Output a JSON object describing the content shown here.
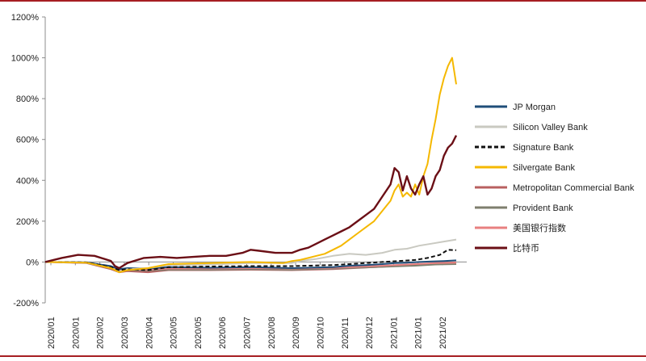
{
  "chart_data": {
    "type": "line",
    "title": "",
    "xlabel": "",
    "ylabel": "",
    "ylim": [
      -200,
      1200
    ],
    "yticks": [
      -200,
      0,
      200,
      400,
      600,
      800,
      1000,
      1200
    ],
    "ytick_labels": [
      "-200%",
      "0%",
      "200%",
      "400%",
      "600%",
      "800%",
      "1000%",
      "1200%"
    ],
    "x_tick_labels": [
      "2020/01",
      "2020/01",
      "2020/02",
      "2020/03",
      "2020/04",
      "2020/05",
      "2020/05",
      "2020/06",
      "2020/07",
      "2020/08",
      "2020/09",
      "2020/10",
      "2020/11",
      "2020/12",
      "2021/01",
      "2021/01",
      "2021/02"
    ],
    "x_index_range": [
      0,
      100
    ],
    "grid": false,
    "legend_position": "right",
    "colors": {
      "frame": "#a61e22"
    },
    "series": [
      {
        "name": "JP Morgan",
        "color": "#1f4e79",
        "dash": "solid",
        "x": [
          0,
          10,
          16,
          18,
          20,
          25,
          30,
          40,
          50,
          60,
          70,
          74,
          78,
          82,
          85,
          88,
          91,
          94,
          97,
          100
        ],
        "y": [
          0,
          -2,
          -20,
          -35,
          -30,
          -32,
          -25,
          -28,
          -25,
          -30,
          -25,
          -18,
          -15,
          -10,
          -5,
          -3,
          0,
          3,
          5,
          8
        ]
      },
      {
        "name": "Silicon Valley Bank",
        "color": "#c9c9c1",
        "dash": "solid",
        "x": [
          0,
          10,
          16,
          18,
          20,
          25,
          30,
          40,
          50,
          60,
          62,
          66,
          70,
          74,
          78,
          82,
          85,
          88,
          91,
          94,
          97,
          100
        ],
        "y": [
          0,
          -3,
          -30,
          -45,
          -35,
          -30,
          -15,
          -12,
          -5,
          -5,
          5,
          15,
          30,
          40,
          35,
          45,
          60,
          65,
          80,
          90,
          100,
          110
        ]
      },
      {
        "name": "Signature Bank",
        "color": "#111111",
        "dash": "dashed",
        "x": [
          0,
          10,
          16,
          18,
          20,
          25,
          30,
          40,
          50,
          60,
          70,
          74,
          78,
          82,
          86,
          90,
          93,
          96,
          98,
          100
        ],
        "y": [
          0,
          -2,
          -25,
          -40,
          -35,
          -40,
          -25,
          -22,
          -20,
          -20,
          -15,
          -10,
          -5,
          0,
          5,
          10,
          20,
          35,
          60,
          58
        ]
      },
      {
        "name": "Silvergate Bank",
        "color": "#f5b800",
        "dash": "solid",
        "x": [
          0,
          10,
          16,
          18,
          20,
          25,
          30,
          40,
          50,
          58,
          60,
          62,
          64,
          66,
          68,
          70,
          72,
          74,
          76,
          78,
          80,
          82,
          84,
          85,
          86,
          87,
          88,
          89,
          90,
          91,
          92,
          93,
          94,
          95,
          96,
          97,
          98,
          99,
          100
        ],
        "y": [
          0,
          -3,
          -30,
          -50,
          -40,
          -30,
          -10,
          -5,
          0,
          -5,
          5,
          10,
          20,
          30,
          40,
          60,
          80,
          110,
          140,
          170,
          200,
          250,
          300,
          350,
          380,
          320,
          340,
          320,
          380,
          330,
          420,
          480,
          600,
          700,
          820,
          900,
          960,
          1000,
          870
        ]
      },
      {
        "name": "Metropolitan Commercial Bank",
        "color": "#b86060",
        "dash": "solid",
        "x": [
          0,
          10,
          16,
          18,
          20,
          25,
          30,
          40,
          50,
          60,
          70,
          80,
          90,
          95,
          100
        ],
        "y": [
          0,
          -5,
          -35,
          -50,
          -45,
          -50,
          -40,
          -40,
          -38,
          -40,
          -35,
          -25,
          -15,
          -5,
          -2
        ]
      },
      {
        "name": "Provident Bank",
        "color": "#7f7f6e",
        "dash": "solid",
        "x": [
          0,
          10,
          16,
          18,
          20,
          25,
          30,
          40,
          50,
          60,
          70,
          80,
          90,
          95,
          100
        ],
        "y": [
          0,
          -4,
          -30,
          -45,
          -40,
          -42,
          -38,
          -38,
          -35,
          -38,
          -32,
          -25,
          -18,
          -12,
          -10
        ]
      },
      {
        "name": "美国银行指数",
        "color": "#e88080",
        "dash": "solid",
        "x": [
          0,
          10,
          16,
          18,
          20,
          25,
          30,
          40,
          50,
          60,
          70,
          80,
          90,
          95,
          100
        ],
        "y": [
          0,
          -3,
          -28,
          -40,
          -35,
          -38,
          -32,
          -32,
          -30,
          -32,
          -28,
          -20,
          -10,
          -5,
          -3
        ]
      },
      {
        "name": "比特币",
        "color": "#6b0f16",
        "dash": "solid",
        "x": [
          0,
          4,
          8,
          12,
          16,
          17,
          18,
          20,
          24,
          28,
          32,
          36,
          40,
          44,
          48,
          50,
          52,
          56,
          60,
          62,
          64,
          66,
          68,
          70,
          72,
          74,
          76,
          78,
          80,
          82,
          84,
          85,
          86,
          87,
          88,
          89,
          90,
          91,
          92,
          93,
          94,
          95,
          96,
          97,
          98,
          99,
          100
        ],
        "y": [
          0,
          20,
          35,
          30,
          5,
          -20,
          -30,
          -5,
          20,
          25,
          20,
          25,
          30,
          30,
          45,
          60,
          55,
          45,
          45,
          60,
          70,
          90,
          110,
          130,
          150,
          170,
          200,
          230,
          260,
          320,
          380,
          460,
          440,
          350,
          420,
          360,
          330,
          380,
          420,
          330,
          360,
          420,
          450,
          520,
          560,
          580,
          620
        ]
      }
    ]
  }
}
